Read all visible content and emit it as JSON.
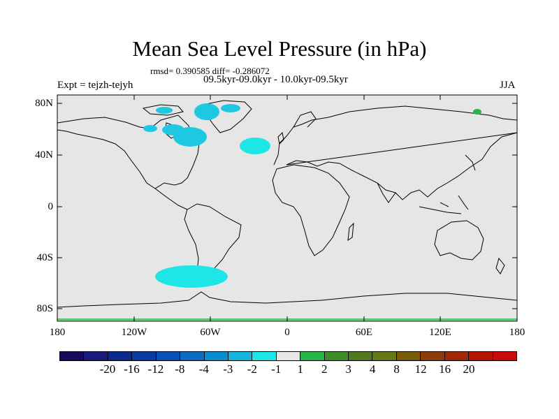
{
  "title": "Mean Sea Level Pressure (in hPa)",
  "stats": "rmsd= 0.390585 diff= -0.286072",
  "period": "09.5kyr-09.0kyr - 10.0kyr-09.5kyr",
  "experiment": "Expt = tejzh-tejyh",
  "season": "JJA",
  "map": {
    "type": "filled-contour-map",
    "projection": "cylindrical-equidistant",
    "background_class": "-1 to 1",
    "background_color": "#e6e6e6",
    "lat_ticks": [
      "80N",
      "40N",
      "0",
      "40S",
      "80S"
    ],
    "lon_ticks": [
      "180",
      "120W",
      "60W",
      "0",
      "60E",
      "120E",
      "180"
    ],
    "regions": [
      {
        "name": "north-canada-greenland",
        "class": "-2",
        "color": "#1ec8e0"
      },
      {
        "name": "north-atlantic",
        "class": "-1",
        "color": "#1ee6e6"
      },
      {
        "name": "southern-ocean-drake",
        "class": "-1",
        "color": "#1ee6e6"
      },
      {
        "name": "northeast-siberia",
        "class": "1",
        "color": "#28b44a"
      },
      {
        "name": "antarctica-coast",
        "class": "1",
        "color": "#28b44a"
      }
    ]
  },
  "colorbar": {
    "colors": [
      "#1a0a5a",
      "#1a1a7a",
      "#0a2a8c",
      "#083ca0",
      "#0a50b4",
      "#0a6cc0",
      "#0a8cd0",
      "#14b4dc",
      "#1ee6e6",
      "#e6e6e6",
      "#28b44a",
      "#3c8c28",
      "#50781e",
      "#647814",
      "#785a0a",
      "#8c3c0a",
      "#a02808",
      "#b41404",
      "#c80a0a"
    ],
    "labels": [
      "-20",
      "-16",
      "-12",
      "-8",
      "-4",
      "-3",
      "-2",
      "-1",
      "1",
      "2",
      "3",
      "4",
      "8",
      "12",
      "16",
      "20"
    ]
  }
}
